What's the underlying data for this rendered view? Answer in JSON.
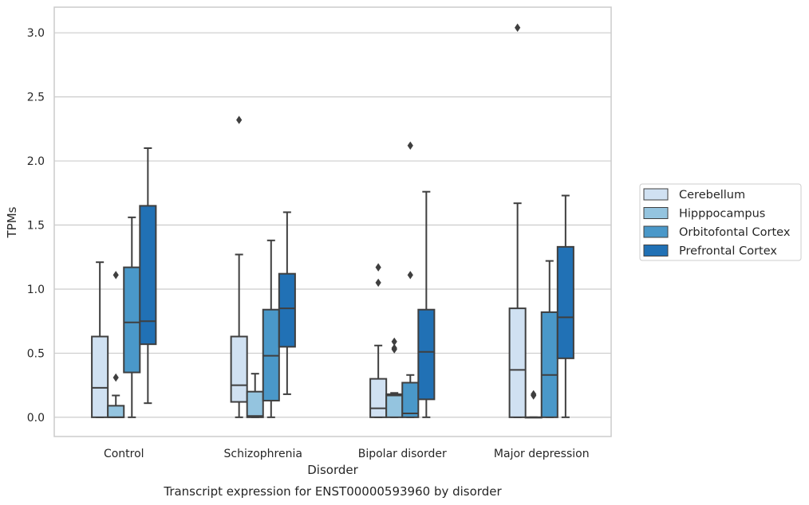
{
  "chart_data": {
    "type": "boxplot",
    "title": "",
    "caption": "Transcript expression for ENST00000593960 by disorder",
    "xlabel": "Disorder",
    "ylabel": "TPMs",
    "ylim": [
      -0.15,
      3.2
    ],
    "yticks": [
      0.0,
      0.5,
      1.0,
      1.5,
      2.0,
      2.5,
      3.0
    ],
    "ytick_labels": [
      "0.0",
      "0.5",
      "1.0",
      "1.5",
      "2.0",
      "2.5",
      "3.0"
    ],
    "grid": "horizontal",
    "legend_position": "right",
    "categories": [
      "Control",
      "Schizophrenia",
      "Bipolar disorder",
      "Major depression"
    ],
    "series": [
      {
        "name": "Cerebellum",
        "color": "#d0e1f2",
        "boxes": [
          {
            "q1": 0.0,
            "median": 0.23,
            "q3": 0.63,
            "whisker_low": 0.0,
            "whisker_high": 1.21,
            "outliers": []
          },
          {
            "q1": 0.12,
            "median": 0.25,
            "q3": 0.63,
            "whisker_low": 0.0,
            "whisker_high": 1.27,
            "outliers": [
              2.32
            ]
          },
          {
            "q1": 0.0,
            "median": 0.07,
            "q3": 0.3,
            "whisker_low": 0.0,
            "whisker_high": 0.56,
            "outliers": [
              1.05,
              1.17
            ]
          },
          {
            "q1": 0.0,
            "median": 0.37,
            "q3": 0.85,
            "whisker_low": 0.0,
            "whisker_high": 1.67,
            "outliers": [
              3.04
            ]
          }
        ]
      },
      {
        "name": "Hipppocampus",
        "color": "#94c4df",
        "boxes": [
          {
            "q1": 0.0,
            "median": 0.0,
            "q3": 0.09,
            "whisker_low": 0.0,
            "whisker_high": 0.17,
            "outliers": [
              0.31,
              1.11
            ]
          },
          {
            "q1": 0.0,
            "median": 0.01,
            "q3": 0.2,
            "whisker_low": 0.0,
            "whisker_high": 0.34,
            "outliers": []
          },
          {
            "q1": 0.0,
            "median": 0.17,
            "q3": 0.18,
            "whisker_low": 0.0,
            "whisker_high": 0.19,
            "outliers": [
              0.53,
              0.54,
              0.59
            ]
          },
          {
            "q1": 0.0,
            "median": 0.0,
            "q3": 0.0,
            "whisker_low": 0.0,
            "whisker_high": 0.0,
            "outliers": [
              0.17,
              0.18
            ]
          }
        ]
      },
      {
        "name": "Orbitofontal Cortex",
        "color": "#4a98c9",
        "boxes": [
          {
            "q1": 0.35,
            "median": 0.74,
            "q3": 1.17,
            "whisker_low": 0.0,
            "whisker_high": 1.56,
            "outliers": []
          },
          {
            "q1": 0.13,
            "median": 0.48,
            "q3": 0.84,
            "whisker_low": 0.0,
            "whisker_high": 1.38,
            "outliers": []
          },
          {
            "q1": 0.0,
            "median": 0.03,
            "q3": 0.27,
            "whisker_low": 0.0,
            "whisker_high": 0.33,
            "outliers": [
              1.11,
              2.12
            ]
          },
          {
            "q1": 0.0,
            "median": 0.33,
            "q3": 0.82,
            "whisker_low": 0.0,
            "whisker_high": 1.22,
            "outliers": []
          }
        ]
      },
      {
        "name": "Prefrontal Cortex",
        "color": "#2171b5",
        "boxes": [
          {
            "q1": 0.57,
            "median": 0.75,
            "q3": 1.65,
            "whisker_low": 0.11,
            "whisker_high": 2.1,
            "outliers": []
          },
          {
            "q1": 0.55,
            "median": 0.85,
            "q3": 1.12,
            "whisker_low": 0.18,
            "whisker_high": 1.6,
            "outliers": []
          },
          {
            "q1": 0.14,
            "median": 0.51,
            "q3": 0.84,
            "whisker_low": 0.0,
            "whisker_high": 1.76,
            "outliers": []
          },
          {
            "q1": 0.46,
            "median": 0.78,
            "q3": 1.33,
            "whisker_low": 0.0,
            "whisker_high": 1.73,
            "outliers": []
          }
        ]
      }
    ],
    "style": {
      "grid_color": "#cccccc",
      "frame_color": "#cccccc",
      "edge_color": "#3f3f3f"
    }
  }
}
